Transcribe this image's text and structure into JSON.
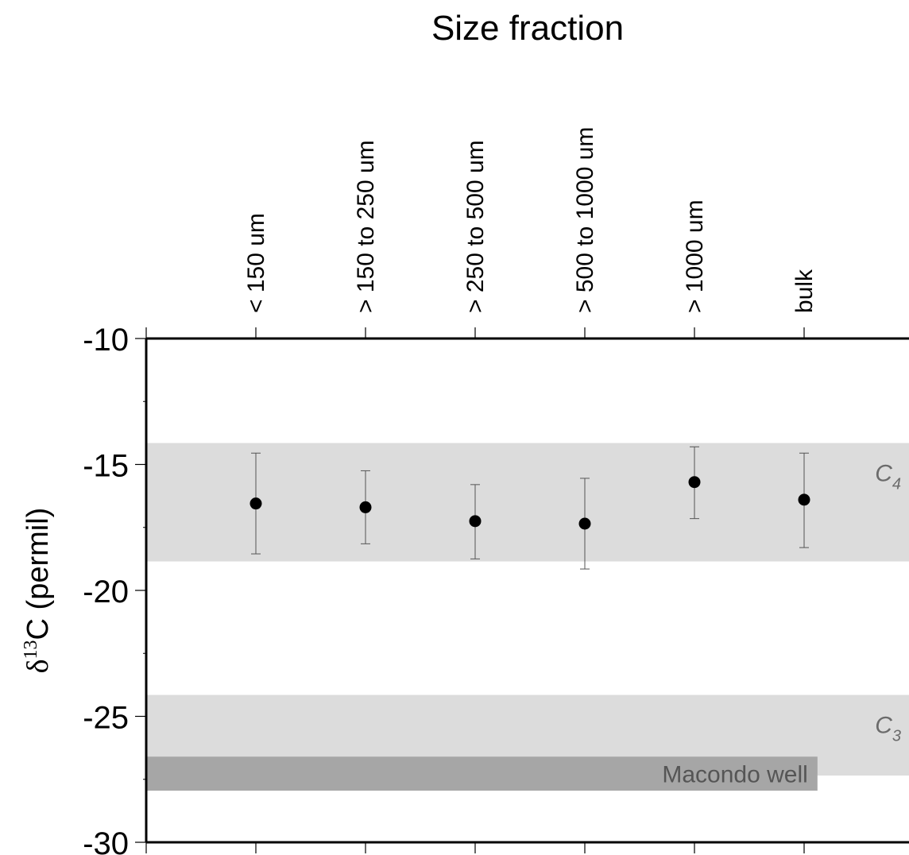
{
  "chart_data": {
    "type": "scatter",
    "title": "Size fraction",
    "ylabel": {
      "prefix": "δ",
      "superscript": "13",
      "suffix": "C (permil)"
    },
    "ylim": [
      -30,
      -10
    ],
    "y_major_ticks": [
      -10,
      -15,
      -20,
      -25,
      -30
    ],
    "y_tick_labels": [
      "-10",
      "-15",
      "-20",
      "-25",
      "-30"
    ],
    "y_minor_step": 2.5,
    "grid": false,
    "categories": [
      "< 150 um",
      "> 150 to 250 um",
      "> 250 to 500 um",
      "> 500 to 1000 um",
      "> 1000 um",
      "bulk"
    ],
    "series": [
      {
        "values": [
          -16.55,
          -16.7,
          -17.25,
          -17.35,
          -15.7,
          -16.4
        ],
        "error_low": [
          -18.55,
          -18.15,
          -18.75,
          -19.15,
          -17.15,
          -18.3
        ],
        "error_high": [
          -14.55,
          -15.25,
          -15.8,
          -15.55,
          -14.3,
          -14.55
        ]
      }
    ],
    "bands": [
      {
        "label_main": "C",
        "label_sub": "4",
        "y_range": [
          -18.85,
          -14.15
        ],
        "x_end": 1.0,
        "color": "#dcdcdc",
        "label_color": "#6b6b6b"
      },
      {
        "label_main": "C",
        "label_sub": "3",
        "y_range": [
          -27.35,
          -24.15
        ],
        "x_end": 1.0,
        "color": "#dcdcdc",
        "label_color": "#6b6b6b"
      },
      {
        "label_main": "Macondo well",
        "label_sub": "",
        "y_range": [
          -27.95,
          -26.6
        ],
        "x_end": 0.88,
        "color": "#a6a6a6",
        "label_color": "#555555"
      }
    ]
  }
}
